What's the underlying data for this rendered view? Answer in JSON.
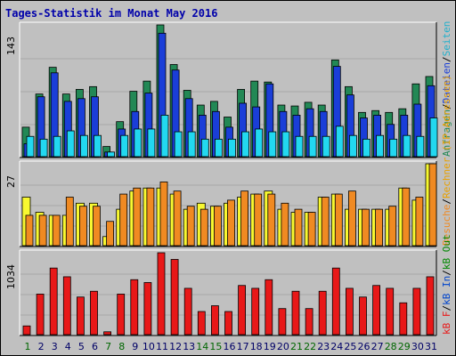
{
  "title": "Tages-Statistik im Monat May 2016",
  "colors": {
    "background": "#c0c0c0",
    "frame": "#ffffff",
    "title": "#0000aa",
    "weekday_label": "#000066",
    "weekend_label": "#006600",
    "anfragen": "#228855",
    "dateien": "#1a3ed8",
    "seiten": "#22d8f0",
    "rechner": "#f8f830",
    "besuche": "#f08a22",
    "kb_f": "#e81818",
    "kb_in": "#0044cc",
    "kb_out": "#008800"
  },
  "side_labels": {
    "top": [
      {
        "text": "Anfragen",
        "color": "#228855"
      },
      {
        "text": "/",
        "color": "#000000"
      },
      {
        "text": "Dateien",
        "color": "#1a3ed8"
      },
      {
        "text": "/",
        "color": "#000000"
      },
      {
        "text": "Seiten",
        "color": "#22b0cc"
      }
    ],
    "mid": [
      {
        "text": "Besuche",
        "color": "#f08a22"
      },
      {
        "text": "/",
        "color": "#000000"
      },
      {
        "text": "Rechner (IP-Adressen)",
        "color": "#e8a000"
      }
    ],
    "bot": [
      {
        "text": "kB F",
        "color": "#e81818"
      },
      {
        "text": "/",
        "color": "#000000"
      },
      {
        "text": "kB In",
        "color": "#0044cc"
      },
      {
        "text": "/",
        "color": "#000000"
      },
      {
        "text": "kB Out",
        "color": "#008800"
      }
    ]
  },
  "chart_data": [
    {
      "type": "bar",
      "categories": [
        "1",
        "2",
        "3",
        "4",
        "5",
        "6",
        "7",
        "8",
        "9",
        "10",
        "11",
        "12",
        "13",
        "14",
        "15",
        "16",
        "17",
        "18",
        "19",
        "20",
        "21",
        "22",
        "23",
        "24",
        "25",
        "26",
        "27",
        "28",
        "29",
        "30",
        "31"
      ],
      "weekend_days": [
        "1",
        "7",
        "8",
        "14",
        "15",
        "21",
        "22",
        "28",
        "29"
      ],
      "ymax": 143,
      "ylabel_tick": "143",
      "series": [
        {
          "name": "Anfragen",
          "values": [
            32,
            68,
            97,
            68,
            73,
            76,
            11,
            38,
            71,
            82,
            143,
            100,
            72,
            56,
            60,
            43,
            73,
            82,
            81,
            56,
            55,
            59,
            56,
            105,
            76,
            48,
            50,
            48,
            52,
            79,
            87
          ]
        },
        {
          "name": "Dateien",
          "values": [
            14,
            65,
            91,
            60,
            63,
            65,
            5,
            30,
            49,
            69,
            134,
            94,
            63,
            45,
            49,
            32,
            58,
            54,
            79,
            49,
            45,
            52,
            49,
            98,
            67,
            42,
            45,
            35,
            45,
            57,
            77
          ]
        },
        {
          "name": "Seiten",
          "values": [
            22,
            19,
            22,
            28,
            23,
            23,
            5,
            23,
            30,
            30,
            45,
            27,
            27,
            19,
            19,
            19,
            27,
            30,
            27,
            27,
            22,
            22,
            22,
            33,
            23,
            19,
            23,
            19,
            23,
            22,
            42
          ]
        }
      ]
    },
    {
      "type": "bar",
      "categories": [
        "1",
        "2",
        "3",
        "4",
        "5",
        "6",
        "7",
        "8",
        "9",
        "10",
        "11",
        "12",
        "13",
        "14",
        "15",
        "16",
        "17",
        "18",
        "19",
        "20",
        "21",
        "22",
        "23",
        "24",
        "25",
        "26",
        "27",
        "28",
        "29",
        "30",
        "31"
      ],
      "ymax": 27,
      "ylabel_tick": "27",
      "series": [
        {
          "name": "Rechner (IP-Adressen)",
          "values": [
            16,
            11,
            10,
            10,
            14,
            14,
            3,
            12,
            18,
            19,
            19,
            17,
            12,
            14,
            13,
            14,
            16,
            17,
            18,
            12,
            11,
            11,
            16,
            17,
            12,
            12,
            12,
            12,
            19,
            15,
            27
          ]
        },
        {
          "name": "Besuche",
          "values": [
            10,
            10,
            10,
            16,
            13,
            13,
            8,
            17,
            19,
            19,
            21,
            18,
            13,
            12,
            13,
            15,
            18,
            17,
            17,
            14,
            12,
            11,
            16,
            17,
            18,
            12,
            12,
            13,
            19,
            16,
            27
          ]
        }
      ]
    },
    {
      "type": "bar",
      "categories": [
        "1",
        "2",
        "3",
        "4",
        "5",
        "6",
        "7",
        "8",
        "9",
        "10",
        "11",
        "12",
        "13",
        "14",
        "15",
        "16",
        "17",
        "18",
        "19",
        "20",
        "21",
        "22",
        "23",
        "24",
        "25",
        "26",
        "27",
        "28",
        "29",
        "30",
        "31"
      ],
      "ymax": 1034,
      "ylabel_tick": "1034",
      "series": [
        {
          "name": "kB F",
          "values": [
            110,
            512,
            841,
            731,
            475,
            548,
            36,
            512,
            694,
            658,
            1034,
            950,
            585,
            292,
            365,
            292,
            621,
            585,
            694,
            329,
            548,
            329,
            548,
            841,
            585,
            475,
            621,
            585,
            402,
            585,
            731
          ]
        }
      ]
    }
  ],
  "day_labels": [
    "1",
    "2",
    "3",
    "4",
    "5",
    "6",
    "7",
    "8",
    "9",
    "10",
    "11",
    "12",
    "13",
    "14",
    "15",
    "16",
    "17",
    "18",
    "19",
    "20",
    "21",
    "22",
    "23",
    "24",
    "25",
    "26",
    "27",
    "28",
    "29",
    "30",
    "31"
  ]
}
